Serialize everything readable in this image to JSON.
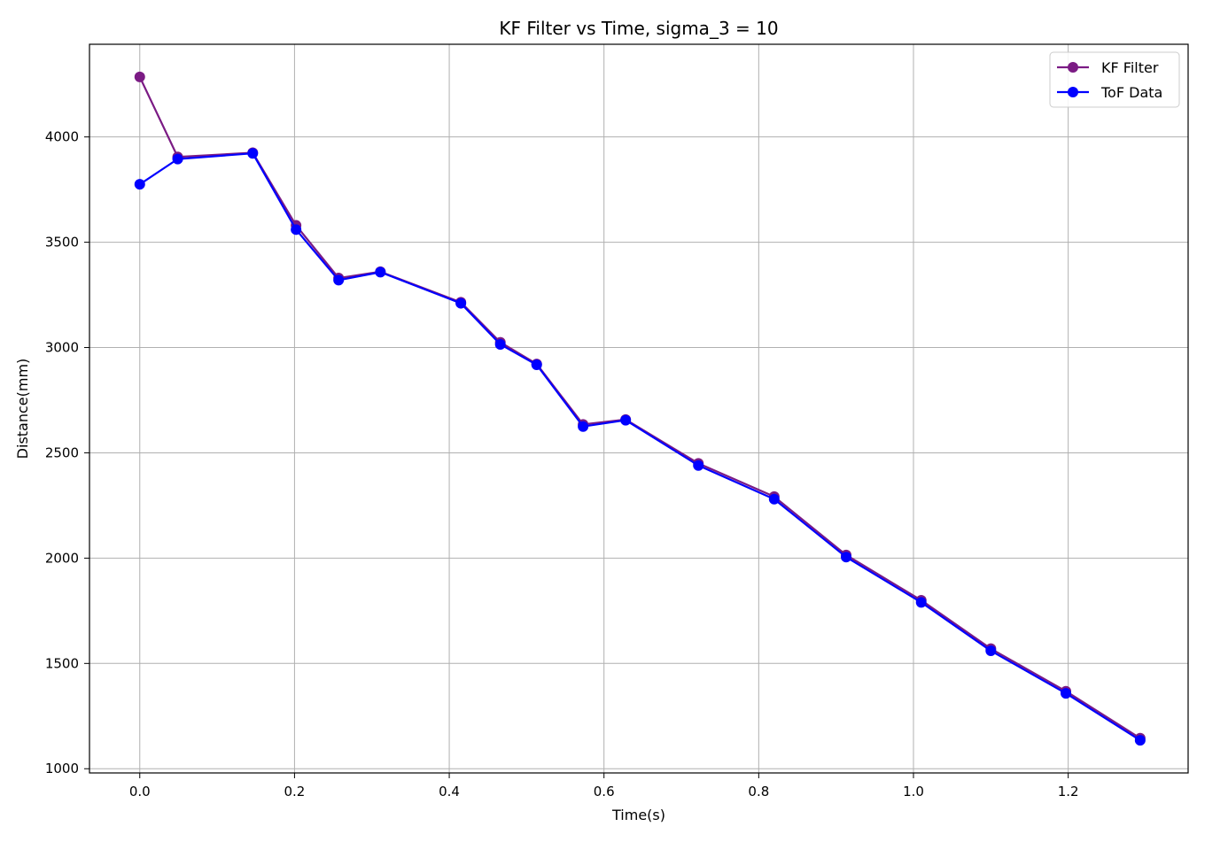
{
  "chart_data": {
    "type": "line",
    "title": "KF Filter vs Time, sigma_3 = 10",
    "xlabel": "Time(s)",
    "ylabel": "Distance(mm)",
    "xlim": [
      -0.065,
      1.355
    ],
    "ylim": [
      980,
      4440
    ],
    "x_ticks": [
      0.0,
      0.2,
      0.4,
      0.6,
      0.8,
      1.0,
      1.2
    ],
    "x_tick_labels": [
      "0.0",
      "0.2",
      "0.4",
      "0.6",
      "0.8",
      "1.0",
      "1.2"
    ],
    "y_ticks": [
      1000,
      1500,
      2000,
      2500,
      3000,
      3500,
      4000
    ],
    "y_tick_labels": [
      "1000",
      "1500",
      "2000",
      "2500",
      "3000",
      "3500",
      "4000"
    ],
    "grid": true,
    "legend_position": "top-right",
    "series": [
      {
        "name": "KF Filter",
        "color": "#7b1b84",
        "x": [
          0.0,
          0.049,
          0.146,
          0.202,
          0.257,
          0.311,
          0.415,
          0.466,
          0.513,
          0.573,
          0.628,
          0.722,
          0.82,
          0.913,
          1.01,
          1.1,
          1.197,
          1.293
        ],
        "y": [
          4285,
          3905,
          3925,
          3580,
          3330,
          3360,
          3215,
          3025,
          2922,
          2635,
          2658,
          2450,
          2292,
          2015,
          1800,
          1570,
          1368,
          1145
        ]
      },
      {
        "name": "ToF Data",
        "color": "#0000ff",
        "x": [
          0.0,
          0.049,
          0.146,
          0.202,
          0.257,
          0.311,
          0.415,
          0.466,
          0.513,
          0.573,
          0.628,
          0.722,
          0.82,
          0.913,
          1.01,
          1.1,
          1.197,
          1.293
        ],
        "y": [
          3775,
          3895,
          3922,
          3560,
          3320,
          3358,
          3210,
          3015,
          2918,
          2625,
          2655,
          2440,
          2280,
          2005,
          1790,
          1560,
          1358,
          1135
        ]
      }
    ]
  }
}
